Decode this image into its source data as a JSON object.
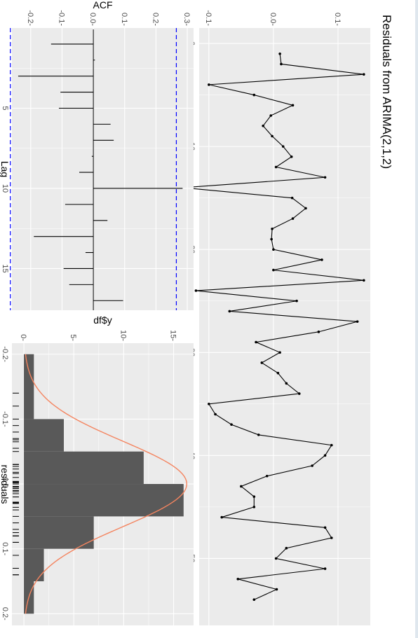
{
  "window": {
    "edge_color": "#dfe7ee"
  },
  "colors": {
    "panel_bg": "#ebebeb",
    "grid_major": "#ffffff",
    "line": "#000000",
    "bar_fill": "#595959",
    "density": "#f4845f",
    "ci_line": "#0000ff",
    "tick_text": "#4d4d4d"
  },
  "chart_data": [
    {
      "id": "residuals-line",
      "type": "line",
      "title": "Residuals from ARIMA(2,1,2)",
      "xlabel": "",
      "ylabel": "",
      "xlim": [
        -1.5,
        56.5
      ],
      "ylim": [
        -0.115,
        0.15
      ],
      "xticks": [
        0,
        10,
        20,
        30,
        40,
        50
      ],
      "yticks": [
        -0.1,
        0.0,
        0.1
      ],
      "ytick_labels": [
        "-0.1-",
        "0.0-",
        "0.1-"
      ],
      "x": [
        1,
        2,
        3,
        4,
        5,
        6,
        7,
        8,
        9,
        10,
        11,
        12,
        13,
        14,
        15,
        16,
        17,
        18,
        19,
        20,
        21,
        22,
        23,
        24,
        25,
        26,
        27,
        28,
        29,
        30,
        31,
        32,
        33,
        34,
        35,
        36,
        37,
        38,
        39,
        40,
        41,
        42,
        43,
        44,
        45,
        46,
        47,
        48,
        49,
        50,
        51,
        52,
        53,
        54
      ],
      "y": [
        0.01,
        0.012,
        0.14,
        -0.1,
        -0.03,
        0.03,
        -0.004,
        -0.016,
        -0.002,
        0.015,
        0.028,
        0.004,
        0.08,
        -0.14,
        0.029,
        0.05,
        0.03,
        -0.002,
        -0.003,
        0.0,
        0.075,
        0.0,
        0.14,
        -0.12,
        0.036,
        -0.068,
        0.13,
        0.07,
        -0.027,
        0.01,
        -0.018,
        0.007,
        0.02,
        0.04,
        -0.1,
        -0.09,
        -0.065,
        -0.023,
        0.09,
        0.08,
        0.06,
        -0.01,
        -0.05,
        -0.03,
        -0.03,
        -0.08,
        0.08,
        0.09,
        0.02,
        0.004,
        0.08,
        -0.055,
        0.005,
        -0.03
      ],
      "grid": true
    },
    {
      "id": "acf",
      "type": "bar",
      "title": "",
      "xlabel": "Lag",
      "ylabel": "ACF",
      "xlim": [
        0,
        17.6
      ],
      "ylim": [
        -0.26,
        0.32
      ],
      "xticks": [
        5,
        10,
        15
      ],
      "yticks": [
        -0.2,
        -0.1,
        0.0,
        0.1,
        0.2,
        0.3
      ],
      "ytick_labels": [
        "-0.2-",
        "-0.1-",
        "0.0-",
        "0.1-",
        "0.2-",
        "0.3-"
      ],
      "lags": [
        1,
        2,
        3,
        4,
        5,
        6,
        7,
        8,
        9,
        10,
        11,
        12,
        13,
        14,
        15,
        16,
        17
      ],
      "values": [
        -0.135,
        0.005,
        -0.24,
        -0.105,
        -0.11,
        0.055,
        0.065,
        -0.005,
        -0.045,
        0.285,
        -0.09,
        0.045,
        -0.19,
        -0.025,
        -0.095,
        -0.077,
        0.095
      ],
      "ci": [
        -0.265,
        0.265
      ],
      "grid": true
    },
    {
      "id": "residual-histogram",
      "type": "bar",
      "title": "",
      "xlabel": "residuals",
      "ylabel": "df$y",
      "xlim": [
        -0.217,
        0.218
      ],
      "ylim": [
        -1.2,
        17
      ],
      "xticks": [
        -0.2,
        -0.1,
        0.0,
        0.1,
        0.2
      ],
      "xtick_labels": [
        "-0.2-",
        "-0.1-",
        "0.0-",
        "0.1-",
        "0.2-"
      ],
      "yticks": [
        0,
        5,
        10,
        15
      ],
      "ytick_labels": [
        "0-",
        "5-",
        "10-",
        "15-"
      ],
      "bins": [
        {
          "x0": -0.2,
          "x1": -0.1,
          "count": 1
        },
        {
          "x0": -0.1,
          "x1": -0.05,
          "count": 4
        },
        {
          "x0": -0.05,
          "x1": -0.0,
          "count": 12
        },
        {
          "x0": -0.0,
          "x1": 0.05,
          "count": 16
        },
        {
          "x0": 0.05,
          "x1": 0.1,
          "count": 7
        },
        {
          "x0": 0.1,
          "x1": 0.15,
          "count": 2
        },
        {
          "x0": 0.15,
          "x1": 0.2,
          "count": 1
        }
      ],
      "bins_note": "",
      "density": {
        "mean": 0.0,
        "sd": 0.066,
        "n": 54,
        "binwidth": 0.05
      },
      "rug": [
        -0.14,
        -0.12,
        -0.1,
        -0.09,
        -0.08,
        -0.07,
        -0.068,
        -0.065,
        -0.055,
        -0.05,
        -0.03,
        -0.03,
        -0.03,
        -0.027,
        -0.023,
        -0.018,
        -0.016,
        -0.01,
        -0.004,
        -0.003,
        -0.002,
        -0.002,
        0.0,
        0.0,
        0.004,
        0.004,
        0.005,
        0.007,
        0.01,
        0.01,
        0.012,
        0.015,
        0.02,
        0.02,
        0.028,
        0.029,
        0.03,
        0.03,
        0.036,
        0.04,
        0.05,
        0.06,
        0.07,
        0.075,
        0.08,
        0.08,
        0.08,
        0.08,
        0.09,
        0.09,
        0.11,
        0.13,
        0.14,
        0.14
      ],
      "grid": true
    }
  ]
}
